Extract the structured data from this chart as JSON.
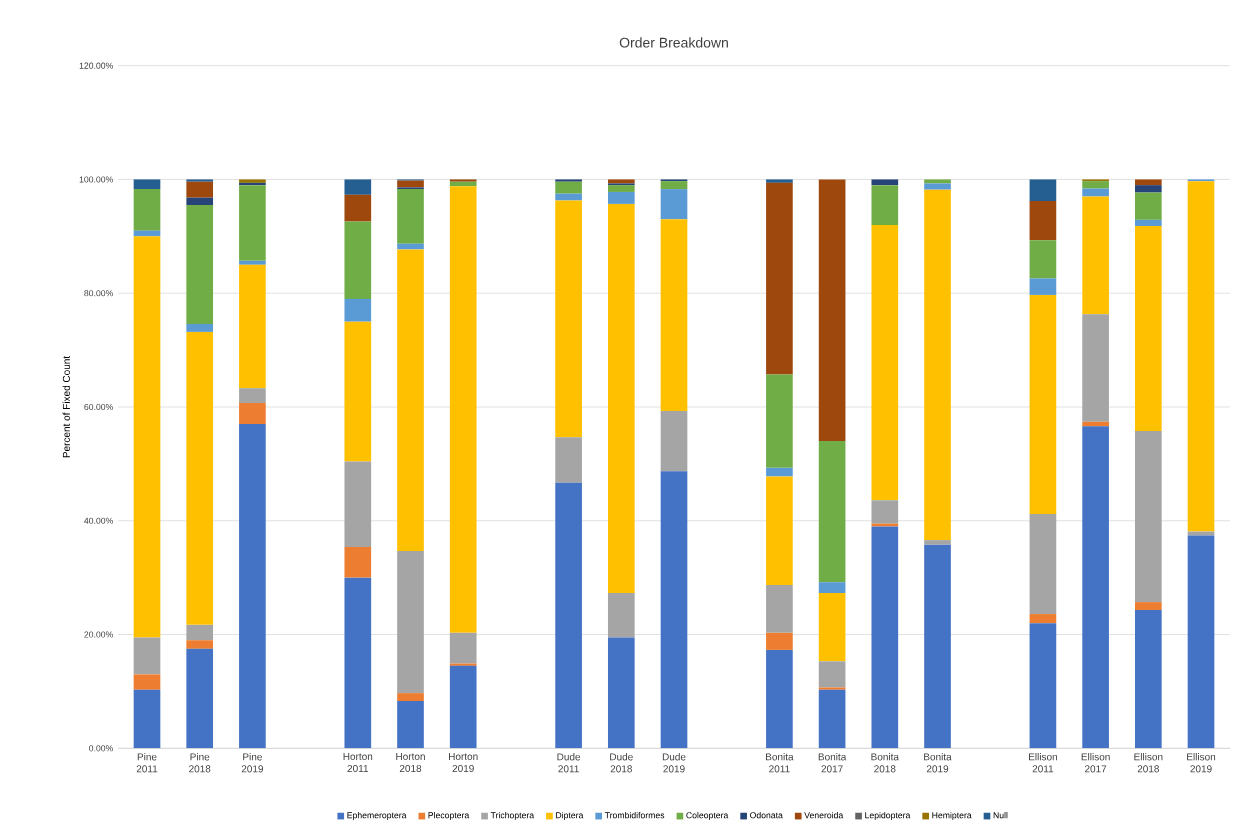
{
  "chart_data": {
    "type": "bar",
    "title": "Order Breakdown",
    "ylabel": "Percent of Fixed Count",
    "stacked": true,
    "grid": "y",
    "legend": "bottom",
    "categories": [
      "Pine 2011",
      "Pine 2018",
      "Pine 2019",
      null,
      "Horton 2011",
      "Horton 2018",
      "Horton 2019",
      null,
      "Dude 2011",
      "Dude 2018",
      "Dude 2019",
      null,
      "Bonita 2011",
      "Bonita 2017",
      "Bonita 2018",
      "Bonita 2019",
      null,
      "Ellison 2011",
      "Ellison 2017",
      "Ellison 2018",
      "Ellison 2019"
    ],
    "ylim": [
      0,
      120
    ],
    "yticks": [
      {
        "value": 0,
        "label": "0.00%"
      },
      {
        "value": 20,
        "label": "20.00%"
      },
      {
        "value": 40,
        "label": "40.00%"
      },
      {
        "value": 60,
        "label": "60.00%"
      },
      {
        "value": 80,
        "label": "80.00%"
      },
      {
        "value": 100,
        "label": "100.00%"
      },
      {
        "value": 120,
        "label": "120.00%"
      }
    ],
    "series": [
      {
        "name": "Ephemeroptera",
        "color": "#4472c4",
        "values": [
          10.3,
          17.5,
          57,
          null,
          30,
          8.3,
          14.5,
          null,
          46.7,
          19.5,
          48.7,
          null,
          17.3,
          10.3,
          39,
          35.8,
          null,
          22,
          56.6,
          24.3,
          37.4
        ]
      },
      {
        "name": "Plecoptera",
        "color": "#ed7d31",
        "values": [
          2.7,
          1.5,
          3.7,
          null,
          5.4,
          1.4,
          0.4,
          null,
          0,
          0,
          0,
          null,
          3,
          0.4,
          0.5,
          0,
          null,
          1.6,
          0.8,
          1.4,
          0
        ]
      },
      {
        "name": "Trichoptera",
        "color": "#a5a5a5",
        "values": [
          6.5,
          2.7,
          2.6,
          null,
          15,
          25,
          5.4,
          null,
          8,
          7.8,
          10.6,
          null,
          8.4,
          4.6,
          4.1,
          0.8,
          null,
          17.6,
          18.9,
          30.1,
          0.7
        ]
      },
      {
        "name": "Diptera",
        "color": "#ffc000",
        "values": [
          70.5,
          51.5,
          21.7,
          null,
          24.6,
          53,
          78.5,
          null,
          41.6,
          68.4,
          33.7,
          null,
          19.1,
          12,
          48.4,
          61.6,
          null,
          38.5,
          20.7,
          36,
          61.6
        ]
      },
      {
        "name": "Trombidiformes",
        "color": "#5b9bd5",
        "values": [
          1,
          1.4,
          0.7,
          null,
          4,
          1,
          0,
          null,
          1.2,
          2.1,
          5.3,
          null,
          1.5,
          1.9,
          0,
          1.1,
          null,
          2.9,
          1.4,
          1.1,
          0.3
        ]
      },
      {
        "name": "Coleoptera",
        "color": "#70ad47",
        "values": [
          7.3,
          20.9,
          13.3,
          null,
          13.6,
          9.6,
          0.8,
          null,
          2.1,
          1.2,
          1.4,
          null,
          16.4,
          24.8,
          7,
          0.7,
          null,
          6.7,
          1.3,
          4.8,
          0
        ]
      },
      {
        "name": "Odonata",
        "color": "#264478",
        "values": [
          0,
          1.3,
          0.4,
          null,
          0,
          0.3,
          0,
          null,
          0.4,
          0.3,
          0.3,
          null,
          0,
          0,
          1,
          0,
          null,
          0,
          0,
          1.3,
          0
        ]
      },
      {
        "name": "Veneroida",
        "color": "#9e480e",
        "values": [
          0,
          2.8,
          0,
          null,
          4.7,
          1.2,
          0.4,
          null,
          0,
          0.7,
          0,
          null,
          33.7,
          46,
          0,
          0,
          null,
          6.9,
          0,
          1,
          0
        ]
      },
      {
        "name": "Lepidoptera",
        "color": "#636363",
        "values": [
          0,
          0,
          0,
          null,
          0,
          0,
          0,
          null,
          0,
          0,
          0,
          null,
          0,
          0,
          0,
          0,
          null,
          0,
          0,
          0,
          0
        ]
      },
      {
        "name": "Hemiptera",
        "color": "#997300",
        "values": [
          0,
          0,
          0.6,
          null,
          0,
          0,
          0,
          null,
          0,
          0,
          0,
          null,
          0,
          0,
          0,
          0,
          null,
          0,
          0.3,
          0,
          0
        ]
      },
      {
        "name": "Null",
        "color": "#255e91",
        "values": [
          1.7,
          0.4,
          0,
          null,
          2.7,
          0.2,
          0,
          null,
          0,
          0,
          0,
          null,
          0.6,
          0,
          0,
          0,
          null,
          3.8,
          0,
          0,
          0
        ]
      }
    ]
  }
}
